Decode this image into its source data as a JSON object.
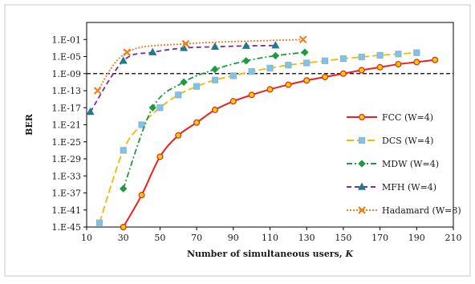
{
  "chart_data": {
    "type": "line",
    "title": "",
    "xlabel": "Number of simultaneous users, K",
    "ylabel": "BER",
    "xlim": [
      10,
      210
    ],
    "xticks": [
      10,
      30,
      50,
      70,
      90,
      110,
      130,
      150,
      170,
      190,
      210
    ],
    "ylim_exponent": [
      -45,
      3
    ],
    "y_scale": "log",
    "yticks": [
      "1.E-01",
      "1.E-05",
      "1.E-09",
      "1.E-13",
      "1.E-17",
      "1.E-21",
      "1.E-25",
      "1.E-29",
      "1.E-33",
      "1.E-37",
      "1.E-41",
      "1.E-45"
    ],
    "threshold_line": {
      "value": "1.E-09",
      "style": "dashed",
      "color": "#000000"
    },
    "legend_position": "right",
    "grid": false,
    "series": [
      {
        "name": "FCC (W=4)",
        "color": "#e8241a",
        "dash": "solid",
        "marker": "circle",
        "marker_fill": "#f5d000",
        "x": [
          30,
          40,
          50,
          60,
          70,
          80,
          90,
          100,
          110,
          120,
          130,
          140,
          150,
          160,
          170,
          180,
          190,
          200
        ],
        "log10_ber": [
          -45,
          -37.5,
          -28.5,
          -23.5,
          -20.5,
          -17.5,
          -15.5,
          -14.0,
          -12.7,
          -11.6,
          -10.6,
          -9.8,
          -9.0,
          -8.2,
          -7.5,
          -6.8,
          -6.3,
          -5.8
        ]
      },
      {
        "name": "DCS (W=4)",
        "color": "#f5b800",
        "dash": "longdash",
        "marker": "square",
        "marker_fill": "#7cc4ea",
        "x": [
          17,
          30,
          40,
          50,
          60,
          70,
          80,
          90,
          100,
          110,
          120,
          130,
          140,
          150,
          160,
          170,
          180,
          190
        ],
        "log10_ber": [
          -44,
          -27,
          -21,
          -17,
          -14,
          -12,
          -10.5,
          -9.5,
          -8.5,
          -7.7,
          -7.0,
          -6.5,
          -6.0,
          -5.5,
          -5.1,
          -4.7,
          -4.4,
          -4.1
        ]
      },
      {
        "name": "MDW (W=4)",
        "color": "#1f9a40",
        "dash": "dashdot",
        "marker": "diamond",
        "marker_fill": "#1f9a40",
        "x": [
          30,
          46,
          63,
          80,
          97,
          113,
          129
        ],
        "log10_ber": [
          -36,
          -17,
          -11,
          -8,
          -6,
          -4.8,
          -4
        ]
      },
      {
        "name": "MFH (W=4)",
        "color": "#7030a0",
        "dash": "dash",
        "marker": "triangle",
        "marker_fill": "#1f7a8c",
        "x": [
          12,
          30,
          46,
          63,
          80,
          97,
          113
        ],
        "log10_ber": [
          -18,
          -6,
          -4,
          -3,
          -2.7,
          -2.5,
          -2.4
        ]
      },
      {
        "name": "Hadamard (W=8)",
        "color": "#f07d1e",
        "dash": "dot",
        "marker": "x",
        "marker_fill": "#f07d1e",
        "x": [
          16,
          32,
          64,
          128
        ],
        "log10_ber": [
          -13,
          -4,
          -2,
          -1
        ]
      }
    ]
  }
}
